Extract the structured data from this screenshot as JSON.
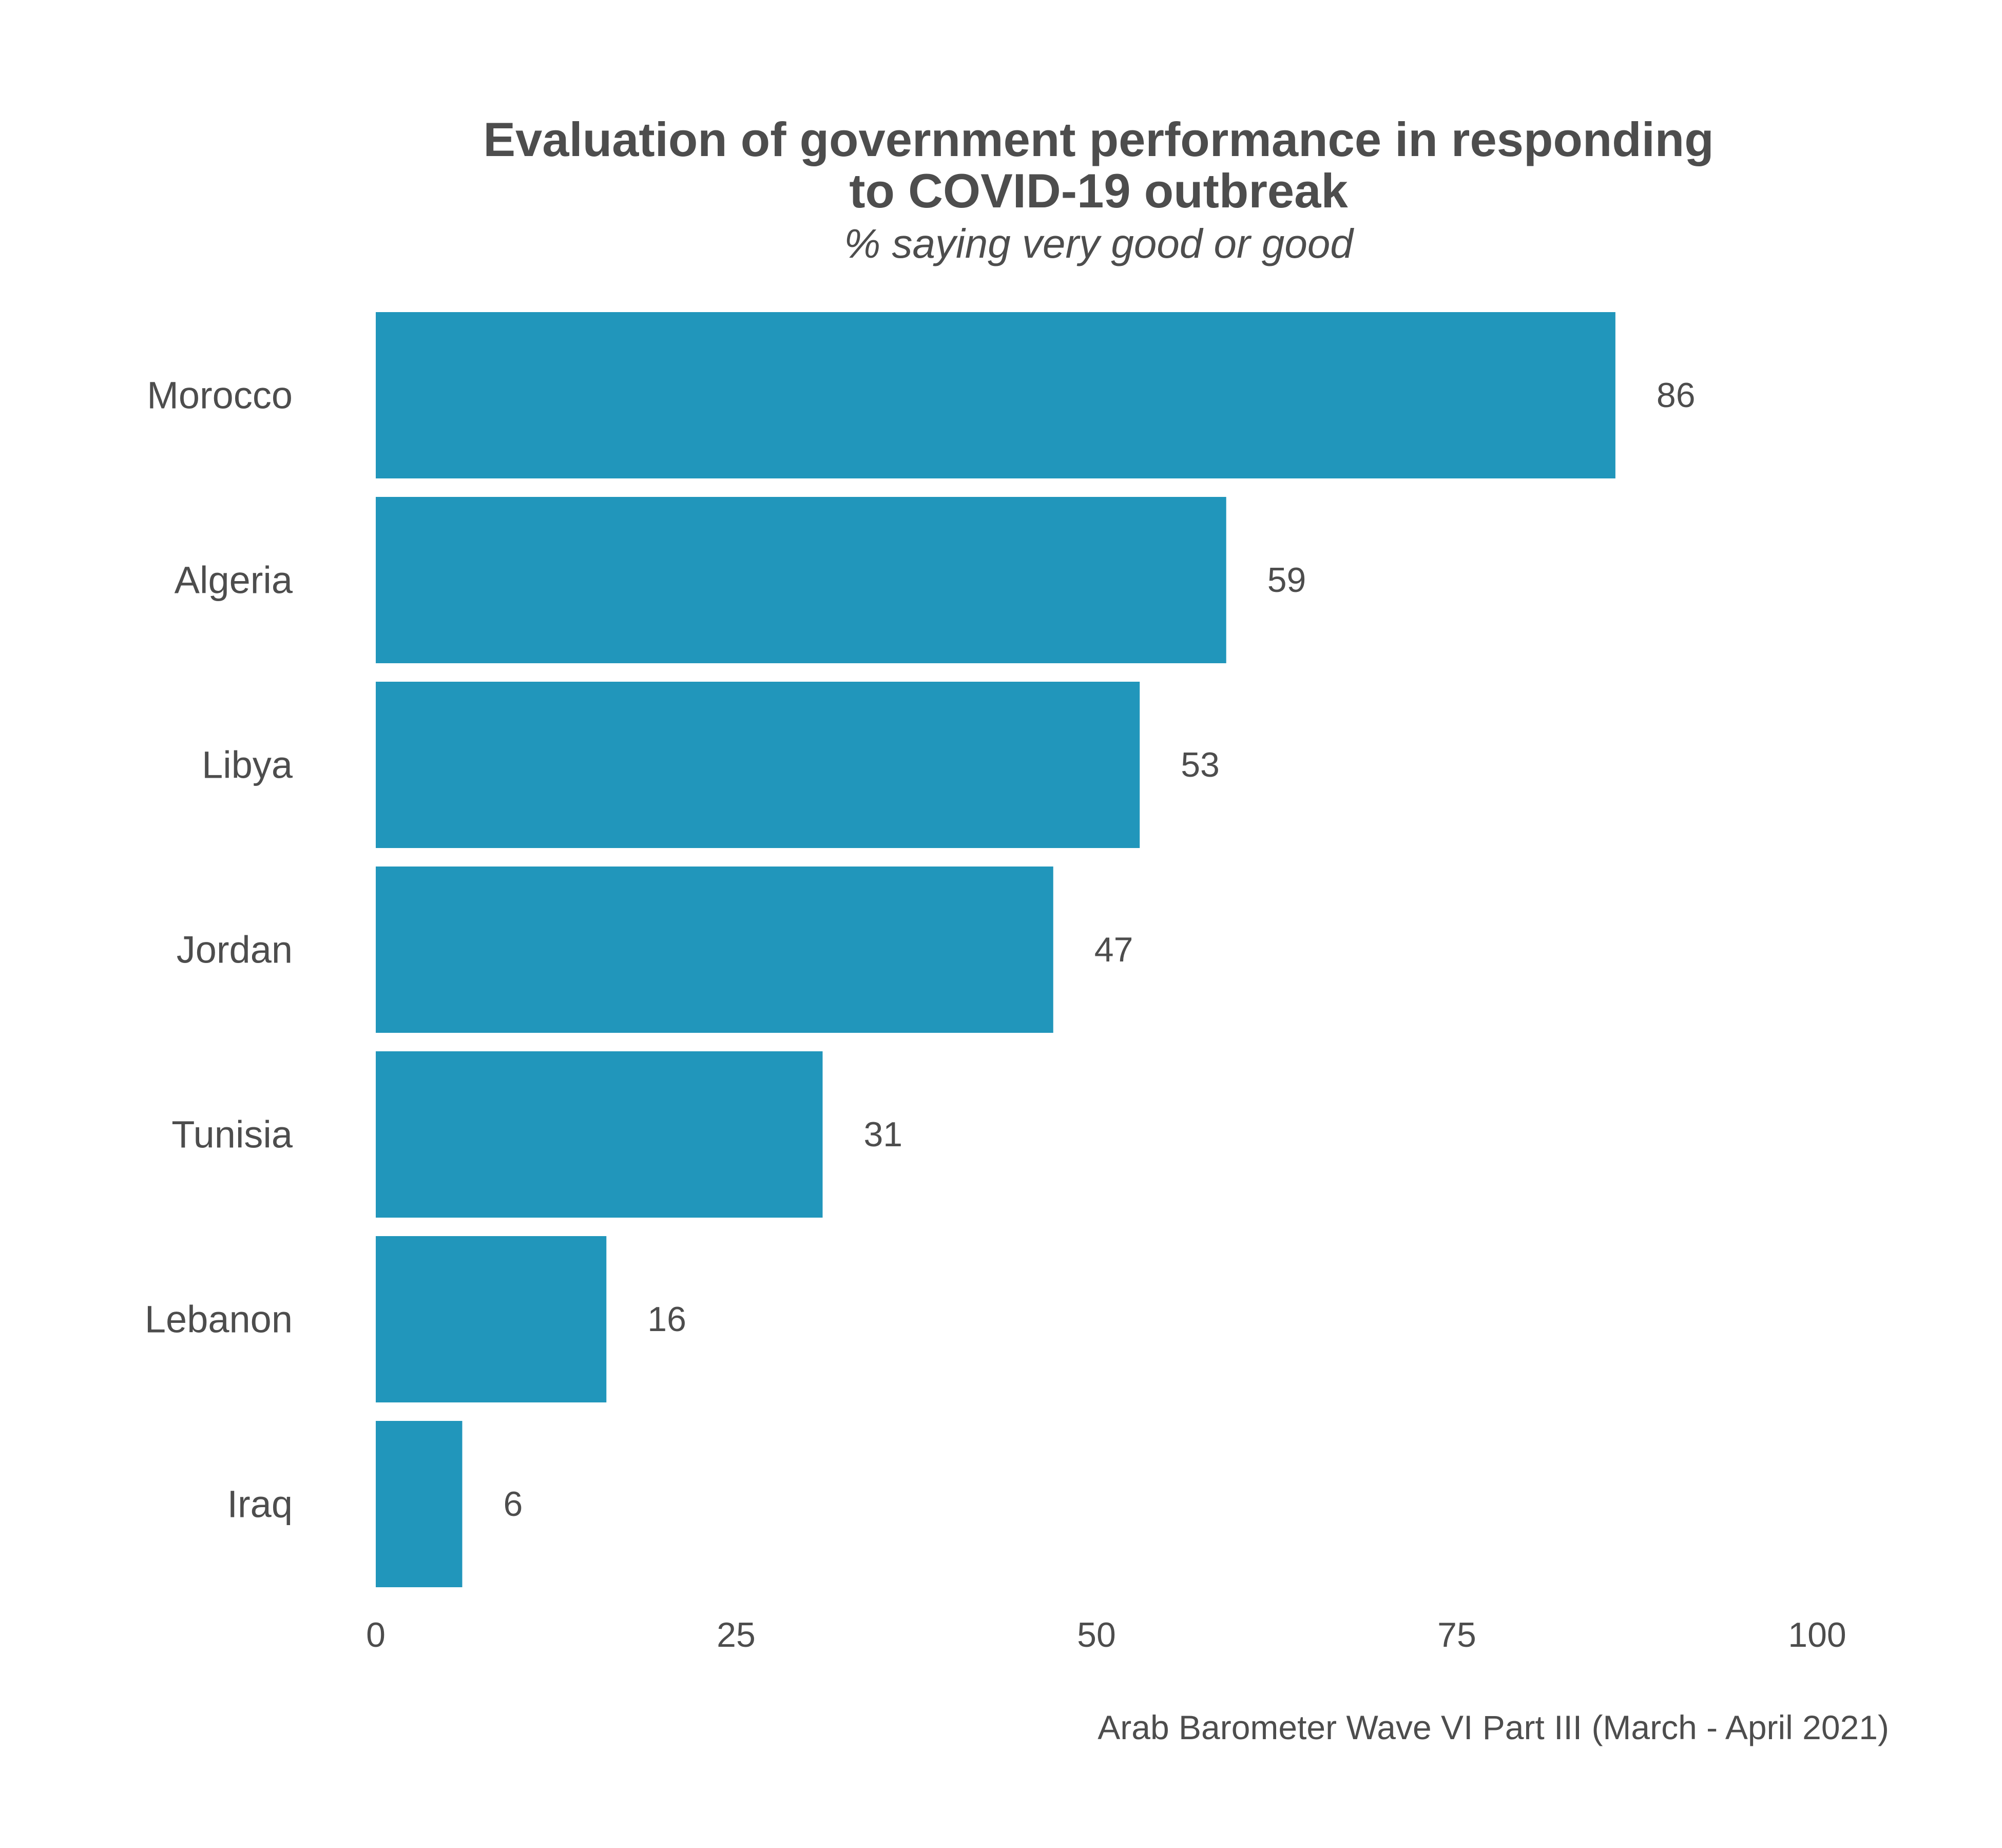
{
  "header": {
    "title_line1": "Evaluation of government performance in responding",
    "title_line2": "to COVID-19 outbreak",
    "subtitle": "% saying very good or good"
  },
  "footer": {
    "caption": "Arab Barometer Wave VI Part III (March - April 2021)"
  },
  "colors": {
    "bar": "#2196bb",
    "text": "#4d4d4d"
  },
  "chart_data": {
    "type": "bar",
    "orientation": "horizontal",
    "title": "Evaluation of government performance in responding to COVID-19 outbreak",
    "subtitle": "% saying very good or good",
    "categories": [
      "Morocco",
      "Algeria",
      "Libya",
      "Jordan",
      "Tunisia",
      "Lebanon",
      "Iraq"
    ],
    "values": [
      86,
      59,
      53,
      47,
      31,
      16,
      6
    ],
    "data_labels": [
      "86",
      "59",
      "53",
      "47",
      "31",
      "16",
      "6"
    ],
    "xlim": [
      0,
      100
    ],
    "xticks": [
      0,
      25,
      50,
      75,
      100
    ],
    "xtick_labels": [
      "0",
      "25",
      "50",
      "75",
      "100"
    ],
    "xlabel": "",
    "ylabel": "",
    "grid": false,
    "legend": "none"
  }
}
